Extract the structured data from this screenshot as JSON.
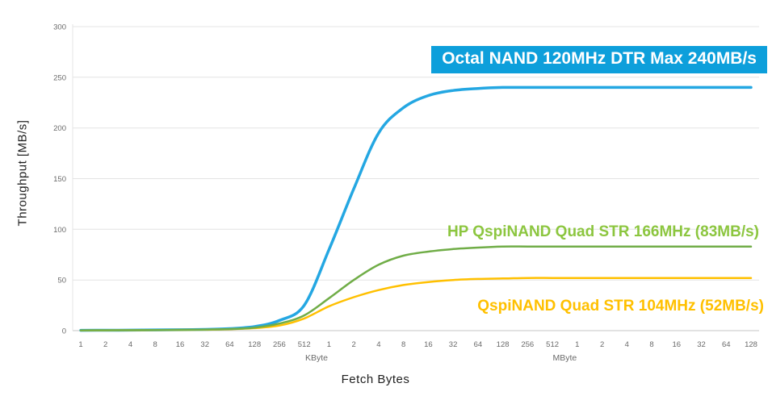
{
  "chart_data": {
    "type": "line",
    "title": "",
    "x_axis": {
      "label": "Fetch Bytes",
      "scale": "log2-categorical",
      "tick_labels": [
        "1",
        "2",
        "4",
        "8",
        "16",
        "32",
        "64",
        "128",
        "256",
        "512",
        "1",
        "2",
        "4",
        "8",
        "16",
        "32",
        "64",
        "128",
        "256",
        "512",
        "1",
        "2",
        "4",
        "8",
        "16",
        "32",
        "64",
        "128"
      ],
      "unit_labels": [
        {
          "text": "KByte",
          "tick_index": 10
        },
        {
          "text": "MByte",
          "tick_index": 20
        }
      ]
    },
    "y_axis": {
      "label": "Throughput [MB/s]",
      "min": 0,
      "max": 300,
      "ticks": [
        0,
        50,
        100,
        150,
        200,
        250,
        300
      ]
    },
    "series": [
      {
        "id": "octal-nand",
        "name": "Octal NAND 120MHz DTR Max 240MB/s",
        "max_mb_s": 240,
        "color": "#24A7E2",
        "label_bg": "#0D9FDB",
        "label_text": "#FFFFFF",
        "stroke_width": 3.5,
        "values": [
          0.3,
          0.4,
          0.5,
          0.7,
          0.9,
          1.2,
          2,
          4,
          10,
          25,
          80,
          140,
          195,
          220,
          232,
          237,
          239,
          240,
          240,
          240,
          240,
          240,
          240,
          240,
          240,
          240,
          240,
          240
        ]
      },
      {
        "id": "hp-qspinand",
        "name": "HP QspiNAND Quad STR 166MHz (83MB/s)",
        "max_mb_s": 83,
        "color": "#70AD47",
        "label_color": "#8CC63F",
        "stroke_width": 2.5,
        "values": [
          0.3,
          0.4,
          0.5,
          0.6,
          0.8,
          1.1,
          1.6,
          3,
          7,
          15,
          32,
          50,
          65,
          74,
          78,
          80.5,
          82,
          83,
          83,
          83,
          83,
          83,
          83,
          83,
          83,
          83,
          83,
          83
        ]
      },
      {
        "id": "qspinand",
        "name": "QspiNAND Quad STR 104MHz (52MB/s)",
        "max_mb_s": 52,
        "color": "#FFC000",
        "label_color": "#FFC000",
        "stroke_width": 2.5,
        "values": [
          0.2,
          0.3,
          0.4,
          0.5,
          0.7,
          0.9,
          1.4,
          2.5,
          5,
          12,
          24,
          33,
          40,
          45,
          48,
          50,
          51,
          51.5,
          52,
          52,
          52,
          52,
          52,
          52,
          52,
          52,
          52,
          52
        ]
      }
    ]
  }
}
